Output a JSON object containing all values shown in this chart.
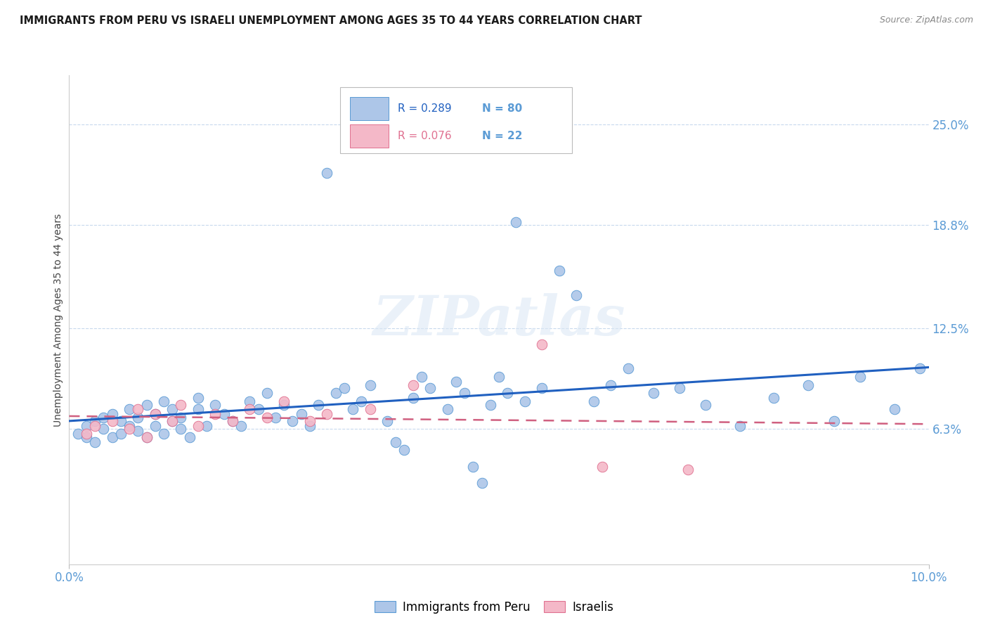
{
  "title": "IMMIGRANTS FROM PERU VS ISRAELI UNEMPLOYMENT AMONG AGES 35 TO 44 YEARS CORRELATION CHART",
  "source": "Source: ZipAtlas.com",
  "ylabel": "Unemployment Among Ages 35 to 44 years",
  "xlim": [
    0.0,
    0.1
  ],
  "ylim": [
    -0.02,
    0.28
  ],
  "ytick_labels": [
    "25.0%",
    "18.8%",
    "12.5%",
    "6.3%"
  ],
  "ytick_positions": [
    0.25,
    0.188,
    0.125,
    0.063
  ],
  "axis_color": "#5b9bd5",
  "grid_color": "#c8d9ed",
  "background_color": "#ffffff",
  "peru_color": "#adc6e8",
  "peru_edge_color": "#5b9bd5",
  "israeli_color": "#f4b8c8",
  "israeli_edge_color": "#e07090",
  "peru_line_color": "#2060c0",
  "israeli_line_color": "#d06080",
  "peru_R": 0.289,
  "peru_N": 80,
  "israeli_R": 0.076,
  "israeli_N": 22,
  "peru_x": [
    0.001,
    0.002,
    0.002,
    0.003,
    0.003,
    0.004,
    0.004,
    0.005,
    0.005,
    0.006,
    0.006,
    0.007,
    0.007,
    0.008,
    0.008,
    0.009,
    0.009,
    0.01,
    0.01,
    0.011,
    0.011,
    0.012,
    0.012,
    0.013,
    0.013,
    0.014,
    0.015,
    0.015,
    0.016,
    0.017,
    0.018,
    0.019,
    0.02,
    0.021,
    0.022,
    0.023,
    0.024,
    0.025,
    0.026,
    0.027,
    0.028,
    0.029,
    0.03,
    0.031,
    0.032,
    0.033,
    0.034,
    0.035,
    0.037,
    0.038,
    0.039,
    0.04,
    0.041,
    0.042,
    0.044,
    0.045,
    0.046,
    0.047,
    0.048,
    0.049,
    0.05,
    0.051,
    0.052,
    0.053,
    0.055,
    0.057,
    0.059,
    0.061,
    0.063,
    0.065,
    0.068,
    0.071,
    0.074,
    0.078,
    0.082,
    0.086,
    0.089,
    0.092,
    0.096,
    0.099
  ],
  "peru_y": [
    0.06,
    0.058,
    0.065,
    0.055,
    0.068,
    0.063,
    0.07,
    0.058,
    0.072,
    0.06,
    0.068,
    0.065,
    0.075,
    0.062,
    0.07,
    0.058,
    0.078,
    0.065,
    0.072,
    0.06,
    0.08,
    0.068,
    0.075,
    0.063,
    0.07,
    0.058,
    0.075,
    0.082,
    0.065,
    0.078,
    0.072,
    0.068,
    0.065,
    0.08,
    0.075,
    0.085,
    0.07,
    0.078,
    0.068,
    0.072,
    0.065,
    0.078,
    0.22,
    0.085,
    0.088,
    0.075,
    0.08,
    0.09,
    0.068,
    0.055,
    0.05,
    0.082,
    0.095,
    0.088,
    0.075,
    0.092,
    0.085,
    0.04,
    0.03,
    0.078,
    0.095,
    0.085,
    0.19,
    0.08,
    0.088,
    0.16,
    0.145,
    0.08,
    0.09,
    0.1,
    0.085,
    0.088,
    0.078,
    0.065,
    0.082,
    0.09,
    0.068,
    0.095,
    0.075,
    0.1
  ],
  "israeli_x": [
    0.002,
    0.003,
    0.005,
    0.007,
    0.008,
    0.009,
    0.01,
    0.012,
    0.013,
    0.015,
    0.017,
    0.019,
    0.021,
    0.023,
    0.025,
    0.028,
    0.03,
    0.035,
    0.04,
    0.055,
    0.062,
    0.072
  ],
  "israeli_y": [
    0.06,
    0.065,
    0.068,
    0.063,
    0.075,
    0.058,
    0.072,
    0.068,
    0.078,
    0.065,
    0.072,
    0.068,
    0.075,
    0.07,
    0.08,
    0.068,
    0.072,
    0.075,
    0.09,
    0.115,
    0.04,
    0.038
  ]
}
